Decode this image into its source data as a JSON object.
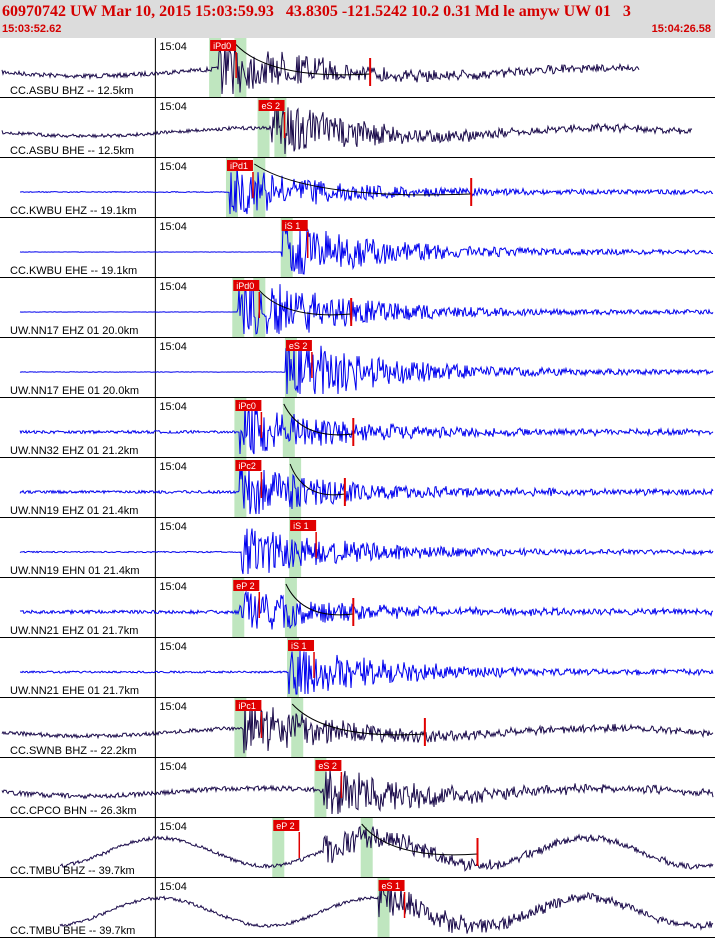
{
  "header": {
    "title": "60970742 UW Mar 10, 2015 15:03:59.93   43.8305 -121.5242 10.2 0.31 Md le amyw UW 01   3",
    "start_time": "15:03:52.62",
    "end_time": "15:04:26.58"
  },
  "colors": {
    "header_bg": "#dcdcdc",
    "header_text": "#d40000",
    "trace_dark": "#1a0a4a",
    "trace_blue": "#0000ee",
    "pick": "#e00000",
    "window": "#bfe6bf"
  },
  "chart_data": {
    "type": "line",
    "title": "60970742 UW Mar 10, 2015 15:03:59.93   43.8305 -121.5242 10.2 0.31 Md le amyw UW 01   3",
    "x_range": [
      "15:03:52.62",
      "15:04:26.58"
    ],
    "grid": false,
    "series": [
      {
        "name": "CC.ASBU BHZ -- 12.5km",
        "minute_label": "15:04",
        "color": "dark",
        "pick": "iPd0",
        "pick_time": "15:04:02.6",
        "env_start": "15:04:03.8",
        "env_end": "15:04:10.2",
        "amp_ratio": 0.55,
        "noise": 0.28,
        "onset": "15:04:03.0",
        "dur": "20s",
        "longp": false
      },
      {
        "name": "CC.ASBU BHE -- 12.5km",
        "minute_label": "15:04",
        "color": "dark",
        "pick": "eS 2",
        "pick_time": "15:04:04.9",
        "env_start": "15:04:05.7",
        "env_end": "",
        "amp_ratio": 0.55,
        "noise": 0.22,
        "onset": "15:04:05.5",
        "dur": "20s",
        "longp": false
      },
      {
        "name": "CC.KWBU EHZ -- 19.1km",
        "minute_label": "15:04",
        "color": "blue",
        "pick": "iPd1",
        "pick_time": "15:04:03.4",
        "env_start": "15:04:04.7",
        "env_end": "15:04:15.0",
        "amp_ratio": 0.5,
        "noise": 0.06,
        "onset": "15:04:03.5",
        "dur": "24s",
        "longp": false
      },
      {
        "name": "CC.KWBU EHE -- 19.1km",
        "minute_label": "15:04",
        "color": "blue",
        "pick": "iS 1",
        "pick_time": "15:04:06.0",
        "env_start": "",
        "env_end": "",
        "amp_ratio": 0.6,
        "noise": 0.02,
        "onset": "15:04:06.0",
        "dur": "24s",
        "longp": false
      },
      {
        "name": "UW.NN17 EHZ 01 20.0km",
        "minute_label": "15:04",
        "color": "blue",
        "pick": "iPd0",
        "pick_time": "15:04:03.7",
        "env_start": "15:04:04.7",
        "env_end": "15:04:09.3",
        "amp_ratio": 0.8,
        "noise": 0.02,
        "onset": "15:04:03.9",
        "dur": "24s",
        "longp": false
      },
      {
        "name": "UW.NN17 EHE 01 20.0km",
        "minute_label": "15:04",
        "color": "blue",
        "pick": "eS 2",
        "pick_time": "15:04:06.2",
        "env_start": "",
        "env_end": "",
        "amp_ratio": 0.7,
        "noise": 0.03,
        "onset": "15:04:06.2",
        "dur": "24s",
        "longp": false
      },
      {
        "name": "UW.NN32 EHZ 01 21.2km",
        "minute_label": "15:04",
        "color": "blue",
        "pick": "iPc0",
        "pick_time": "15:04:03.8",
        "env_start": "15:04:06.1",
        "env_end": "15:04:09.4",
        "amp_ratio": 0.55,
        "noise": 0.18,
        "onset": "15:04:04.0",
        "dur": "24s",
        "longp": false
      },
      {
        "name": "UW.NN19 EHZ 01 21.4km",
        "minute_label": "15:04",
        "color": "blue",
        "pick": "iPc2",
        "pick_time": "15:04:03.8",
        "env_start": "15:04:06.4",
        "env_end": "15:04:09.0",
        "amp_ratio": 0.55,
        "noise": 0.18,
        "onset": "15:04:04.0",
        "dur": "24s",
        "longp": false
      },
      {
        "name": "UW.NN19 EHN 01 21.4km",
        "minute_label": "15:04",
        "color": "blue",
        "pick": "iS 1",
        "pick_time": "15:04:06.4",
        "env_start": "",
        "env_end": "",
        "amp_ratio": 0.55,
        "noise": 0.08,
        "onset": "15:04:04.1",
        "dur": "24s",
        "longp": false
      },
      {
        "name": "UW.NN21 EHZ 01 21.7km",
        "minute_label": "15:04",
        "color": "blue",
        "pick": "eP 2",
        "pick_time": "15:04:03.7",
        "env_start": "15:04:06.2",
        "env_end": "15:04:09.4",
        "amp_ratio": 0.45,
        "noise": 0.22,
        "onset": "15:04:04.0",
        "dur": "24s",
        "longp": false
      },
      {
        "name": "UW.NN21 EHE 01 21.7km",
        "minute_label": "15:04",
        "color": "blue",
        "pick": "iS 1",
        "pick_time": "15:04:06.3",
        "env_start": "",
        "env_end": "",
        "amp_ratio": 0.55,
        "noise": 0.12,
        "onset": "15:04:06.3",
        "dur": "24s",
        "longp": false
      },
      {
        "name": "CC.SWNB BHZ -- 22.2km",
        "minute_label": "15:04",
        "color": "dark",
        "pick": "iPc1",
        "pick_time": "15:04:03.8",
        "env_start": "15:04:06.5",
        "env_end": "15:04:12.8",
        "amp_ratio": 0.5,
        "noise": 0.25,
        "onset": "15:04:04.2",
        "dur": "24s",
        "longp": false
      },
      {
        "name": "CC.CPCO BHN -- 26.3km",
        "minute_label": "15:04",
        "color": "dark",
        "pick": "eS 2",
        "pick_time": "15:04:07.6",
        "env_start": "",
        "env_end": "",
        "amp_ratio": 0.5,
        "noise": 0.3,
        "onset": "15:04:08.0",
        "dur": "26s",
        "longp": false
      },
      {
        "name": "CC.TMBU BHZ -- 39.7km",
        "minute_label": "15:04",
        "color": "dark",
        "pick": "eP 2",
        "pick_time": "15:04:05.6",
        "env_start": "15:04:09.8",
        "env_end": "15:04:15.3",
        "amp_ratio": 0.3,
        "noise": 0.22,
        "onset": "15:04:08.0",
        "dur": "34s",
        "longp": true
      },
      {
        "name": "CC.TMBU BHE -- 39.7km",
        "minute_label": "15:04",
        "color": "dark",
        "pick": "eS 1",
        "pick_time": "15:04:10.6",
        "env_start": "",
        "env_end": "",
        "amp_ratio": 0.35,
        "noise": 0.2,
        "onset": "15:04:10.6",
        "dur": "34s",
        "longp": true
      }
    ]
  }
}
